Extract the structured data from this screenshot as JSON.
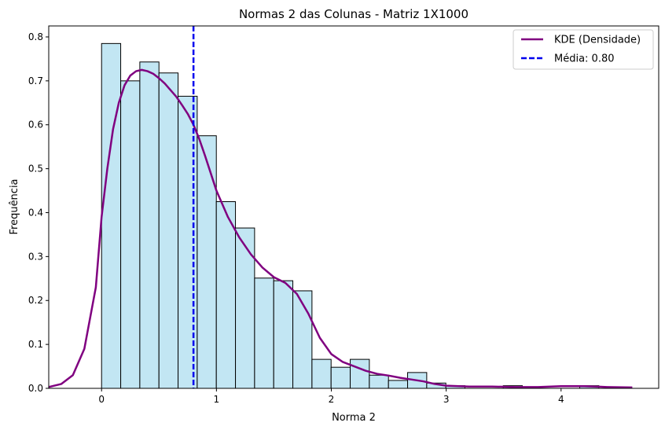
{
  "chart_data": {
    "type": "bar",
    "title": "Normas 2 das Colunas - Matriz 1X1000",
    "xlabel": "Norma 2",
    "ylabel": "Frequência",
    "xlim": [
      -0.46,
      4.85
    ],
    "ylim": [
      0,
      0.825
    ],
    "xticks": [
      0,
      1,
      2,
      3,
      4
    ],
    "yticks": [
      0.0,
      0.1,
      0.2,
      0.3,
      0.4,
      0.5,
      0.6,
      0.7,
      0.8
    ],
    "grid": false,
    "legend_position": "top-right",
    "histogram": {
      "bin_start": 0.0,
      "bin_width": 0.1665,
      "heights": [
        0.785,
        0.7,
        0.743,
        0.718,
        0.665,
        0.575,
        0.425,
        0.365,
        0.251,
        0.245,
        0.222,
        0.066,
        0.048,
        0.066,
        0.03,
        0.018,
        0.036,
        0.012,
        0.006,
        0.0,
        0.0,
        0.006,
        0.0,
        0.0,
        0.0,
        0.006
      ],
      "fill_color": "#c2e6f3",
      "edge_color": "#000000"
    },
    "series": [
      {
        "name": "KDE (Densidade)",
        "type": "line",
        "color": "#800080",
        "x": [
          -0.46,
          -0.35,
          -0.25,
          -0.15,
          -0.05,
          0.0,
          0.05,
          0.1,
          0.15,
          0.2,
          0.25,
          0.3,
          0.35,
          0.4,
          0.45,
          0.5,
          0.55,
          0.6,
          0.65,
          0.7,
          0.75,
          0.8,
          0.85,
          0.9,
          0.95,
          1.0,
          1.1,
          1.2,
          1.3,
          1.4,
          1.5,
          1.6,
          1.7,
          1.8,
          1.9,
          2.0,
          2.1,
          2.2,
          2.3,
          2.4,
          2.5,
          2.6,
          2.7,
          2.8,
          2.9,
          3.0,
          3.2,
          3.4,
          3.6,
          3.8,
          4.0,
          4.2,
          4.4,
          4.62
        ],
        "y": [
          0.003,
          0.01,
          0.03,
          0.09,
          0.23,
          0.39,
          0.5,
          0.59,
          0.65,
          0.69,
          0.712,
          0.722,
          0.725,
          0.722,
          0.716,
          0.706,
          0.694,
          0.679,
          0.664,
          0.645,
          0.625,
          0.6,
          0.568,
          0.53,
          0.49,
          0.45,
          0.39,
          0.343,
          0.305,
          0.275,
          0.253,
          0.24,
          0.215,
          0.17,
          0.115,
          0.078,
          0.06,
          0.05,
          0.04,
          0.033,
          0.029,
          0.024,
          0.02,
          0.016,
          0.01,
          0.006,
          0.004,
          0.004,
          0.003,
          0.003,
          0.005,
          0.005,
          0.003,
          0.002
        ]
      },
      {
        "name": "Média: 0.80",
        "type": "vline",
        "color": "#0000ee",
        "x": 0.8
      }
    ]
  }
}
